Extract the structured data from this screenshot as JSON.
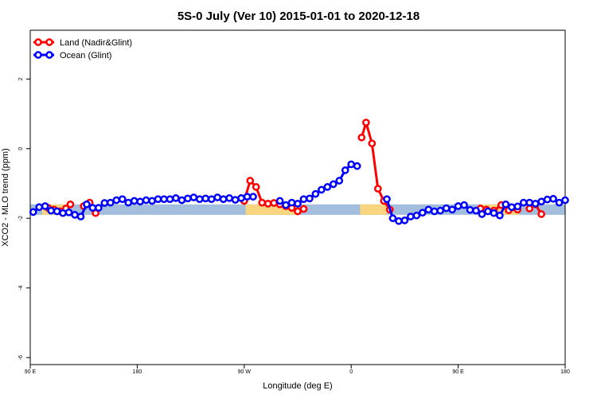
{
  "chart_data": {
    "type": "line",
    "title": "5S-0 July (Ver 10)   2015-01-01 to 2020-12-18",
    "xlabel": "Longitude (deg E)",
    "ylabel": "XCO2 - MLO trend (ppm)",
    "xlim": [
      90,
      450
    ],
    "ylim": [
      -6.2,
      3.4
    ],
    "x_ticks": [
      {
        "value": 90,
        "label": "90 E"
      },
      {
        "value": 162,
        "label": "180"
      },
      {
        "value": 234,
        "label": "90 W"
      },
      {
        "value": 306,
        "label": "0"
      },
      {
        "value": 378,
        "label": "90 E"
      },
      {
        "value": 450,
        "label": "180"
      }
    ],
    "y_ticks": [
      {
        "value": 2,
        "label": "2"
      },
      {
        "value": 0,
        "label": "0"
      },
      {
        "value": -2,
        "label": "-2"
      },
      {
        "value": -4,
        "label": "-4"
      },
      {
        "value": -6,
        "label": "-6"
      }
    ],
    "grid": false,
    "legend_position": "top-left",
    "band": {
      "y_min": -1.9,
      "y_max": -1.6,
      "ocean_color": "#a3bedd",
      "land_color": "#f8d57e",
      "land_ranges": [
        [
          98,
          114
        ],
        [
          235,
          270
        ],
        [
          312,
          330
        ],
        [
          393,
          419
        ]
      ]
    },
    "series": [
      {
        "name": "Land (Nadir&Glint)",
        "color": "#ff0000",
        "segments": [
          {
            "x": [
              102,
              106,
              110,
              114,
              117
            ],
            "y": [
              -1.7,
              -1.75,
              -1.8,
              -1.72,
              -1.6
            ]
          },
          {
            "x": [
              126,
              130,
              134
            ],
            "y": [
              -1.65,
              -1.55,
              -1.85
            ]
          },
          {
            "x": [
              234,
              238,
              242,
              246,
              250,
              254,
              258,
              262,
              266,
              270,
              274
            ],
            "y": [
              -1.5,
              -0.92,
              -1.1,
              -1.55,
              -1.58,
              -1.56,
              -1.6,
              -1.65,
              -1.7,
              -1.8,
              -1.73
            ]
          },
          {
            "x": [
              313,
              316,
              320,
              324,
              328,
              332
            ],
            "y": [
              0.32,
              0.75,
              0.15,
              -1.15,
              -1.5,
              -1.75
            ]
          },
          {
            "x": [
              393,
              397,
              402,
              407,
              412,
              418
            ],
            "y": [
              -1.72,
              -1.75,
              -1.78,
              -1.62,
              -1.77,
              -1.75
            ]
          },
          {
            "x": [
              426,
              430,
              434
            ],
            "y": [
              -1.72,
              -1.6,
              -1.88
            ]
          }
        ]
      },
      {
        "name": "Ocean (Glint)",
        "color": "#0000ff",
        "segments": [
          {
            "x": [
              92,
              96,
              100,
              104,
              108,
              112,
              116,
              120,
              124,
              128,
              132,
              136,
              140,
              144,
              148,
              152,
              156,
              160,
              164,
              168,
              172,
              176,
              180,
              184,
              188,
              192,
              196,
              200,
              204,
              208,
              212,
              216,
              220,
              224,
              228,
              232,
              236,
              240
            ],
            "y": [
              -1.82,
              -1.68,
              -1.65,
              -1.78,
              -1.8,
              -1.85,
              -1.83,
              -1.9,
              -1.95,
              -1.6,
              -1.7,
              -1.7,
              -1.56,
              -1.55,
              -1.48,
              -1.45,
              -1.55,
              -1.5,
              -1.52,
              -1.48,
              -1.5,
              -1.45,
              -1.45,
              -1.45,
              -1.42,
              -1.48,
              -1.43,
              -1.4,
              -1.45,
              -1.43,
              -1.45,
              -1.4,
              -1.45,
              -1.42,
              -1.47,
              -1.42,
              -1.38,
              -1.38
            ]
          },
          {
            "x": [
              258,
              262,
              266,
              270,
              274,
              278,
              282,
              286,
              290,
              294,
              298,
              302,
              306,
              310
            ],
            "y": [
              -1.5,
              -1.62,
              -1.55,
              -1.58,
              -1.45,
              -1.43,
              -1.3,
              -1.18,
              -1.1,
              -1.02,
              -0.92,
              -0.62,
              -0.45,
              -0.5
            ]
          },
          {
            "x": [
              330,
              334,
              338,
              342,
              346,
              350,
              354,
              358,
              362,
              366,
              370,
              374,
              378,
              382,
              386,
              390,
              394,
              398,
              402,
              406,
              410,
              414,
              418,
              422,
              426,
              430,
              434,
              438,
              442,
              446,
              450
            ],
            "y": [
              -1.45,
              -2.0,
              -2.08,
              -2.06,
              -1.95,
              -1.92,
              -1.84,
              -1.75,
              -1.8,
              -1.78,
              -1.71,
              -1.75,
              -1.65,
              -1.62,
              -1.76,
              -1.78,
              -1.88,
              -1.8,
              -1.85,
              -1.92,
              -1.6,
              -1.68,
              -1.66,
              -1.55,
              -1.55,
              -1.58,
              -1.52,
              -1.46,
              -1.44,
              -1.55,
              -1.48
            ]
          }
        ]
      }
    ]
  }
}
